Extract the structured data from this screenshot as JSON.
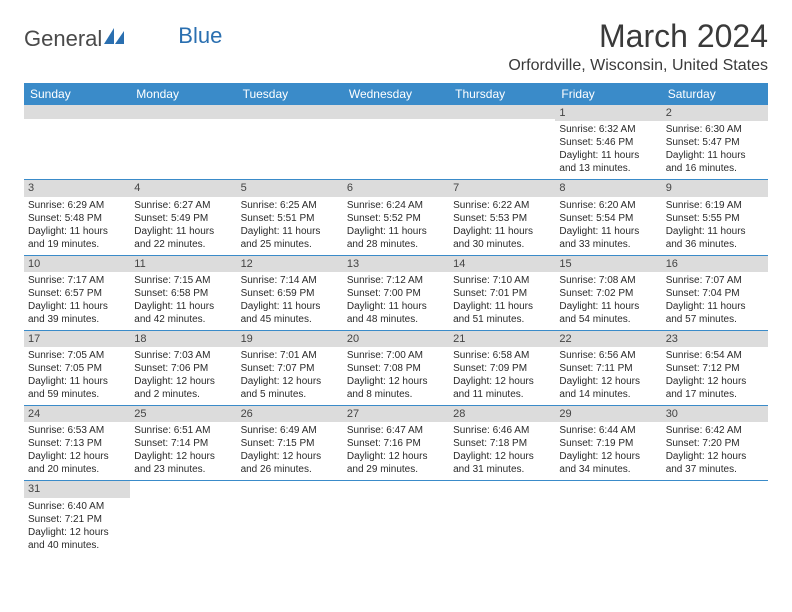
{
  "header": {
    "logo_general": "General",
    "logo_blue": "Blue",
    "month_title": "March 2024",
    "location": "Orfordville, Wisconsin, United States"
  },
  "colors": {
    "header_bg": "#3a8bc9",
    "header_text": "#ffffff",
    "daynum_bg": "#dcdcdc",
    "rule": "#3a8bc9",
    "logo_blue": "#2a6fb0"
  },
  "day_names": [
    "Sunday",
    "Monday",
    "Tuesday",
    "Wednesday",
    "Thursday",
    "Friday",
    "Saturday"
  ],
  "weeks": [
    [
      {
        "n": "",
        "sunrise": "",
        "sunset": "",
        "daylight": ""
      },
      {
        "n": "",
        "sunrise": "",
        "sunset": "",
        "daylight": ""
      },
      {
        "n": "",
        "sunrise": "",
        "sunset": "",
        "daylight": ""
      },
      {
        "n": "",
        "sunrise": "",
        "sunset": "",
        "daylight": ""
      },
      {
        "n": "",
        "sunrise": "",
        "sunset": "",
        "daylight": ""
      },
      {
        "n": "1",
        "sunrise": "Sunrise: 6:32 AM",
        "sunset": "Sunset: 5:46 PM",
        "daylight": "Daylight: 11 hours and 13 minutes."
      },
      {
        "n": "2",
        "sunrise": "Sunrise: 6:30 AM",
        "sunset": "Sunset: 5:47 PM",
        "daylight": "Daylight: 11 hours and 16 minutes."
      }
    ],
    [
      {
        "n": "3",
        "sunrise": "Sunrise: 6:29 AM",
        "sunset": "Sunset: 5:48 PM",
        "daylight": "Daylight: 11 hours and 19 minutes."
      },
      {
        "n": "4",
        "sunrise": "Sunrise: 6:27 AM",
        "sunset": "Sunset: 5:49 PM",
        "daylight": "Daylight: 11 hours and 22 minutes."
      },
      {
        "n": "5",
        "sunrise": "Sunrise: 6:25 AM",
        "sunset": "Sunset: 5:51 PM",
        "daylight": "Daylight: 11 hours and 25 minutes."
      },
      {
        "n": "6",
        "sunrise": "Sunrise: 6:24 AM",
        "sunset": "Sunset: 5:52 PM",
        "daylight": "Daylight: 11 hours and 28 minutes."
      },
      {
        "n": "7",
        "sunrise": "Sunrise: 6:22 AM",
        "sunset": "Sunset: 5:53 PM",
        "daylight": "Daylight: 11 hours and 30 minutes."
      },
      {
        "n": "8",
        "sunrise": "Sunrise: 6:20 AM",
        "sunset": "Sunset: 5:54 PM",
        "daylight": "Daylight: 11 hours and 33 minutes."
      },
      {
        "n": "9",
        "sunrise": "Sunrise: 6:19 AM",
        "sunset": "Sunset: 5:55 PM",
        "daylight": "Daylight: 11 hours and 36 minutes."
      }
    ],
    [
      {
        "n": "10",
        "sunrise": "Sunrise: 7:17 AM",
        "sunset": "Sunset: 6:57 PM",
        "daylight": "Daylight: 11 hours and 39 minutes."
      },
      {
        "n": "11",
        "sunrise": "Sunrise: 7:15 AM",
        "sunset": "Sunset: 6:58 PM",
        "daylight": "Daylight: 11 hours and 42 minutes."
      },
      {
        "n": "12",
        "sunrise": "Sunrise: 7:14 AM",
        "sunset": "Sunset: 6:59 PM",
        "daylight": "Daylight: 11 hours and 45 minutes."
      },
      {
        "n": "13",
        "sunrise": "Sunrise: 7:12 AM",
        "sunset": "Sunset: 7:00 PM",
        "daylight": "Daylight: 11 hours and 48 minutes."
      },
      {
        "n": "14",
        "sunrise": "Sunrise: 7:10 AM",
        "sunset": "Sunset: 7:01 PM",
        "daylight": "Daylight: 11 hours and 51 minutes."
      },
      {
        "n": "15",
        "sunrise": "Sunrise: 7:08 AM",
        "sunset": "Sunset: 7:02 PM",
        "daylight": "Daylight: 11 hours and 54 minutes."
      },
      {
        "n": "16",
        "sunrise": "Sunrise: 7:07 AM",
        "sunset": "Sunset: 7:04 PM",
        "daylight": "Daylight: 11 hours and 57 minutes."
      }
    ],
    [
      {
        "n": "17",
        "sunrise": "Sunrise: 7:05 AM",
        "sunset": "Sunset: 7:05 PM",
        "daylight": "Daylight: 11 hours and 59 minutes."
      },
      {
        "n": "18",
        "sunrise": "Sunrise: 7:03 AM",
        "sunset": "Sunset: 7:06 PM",
        "daylight": "Daylight: 12 hours and 2 minutes."
      },
      {
        "n": "19",
        "sunrise": "Sunrise: 7:01 AM",
        "sunset": "Sunset: 7:07 PM",
        "daylight": "Daylight: 12 hours and 5 minutes."
      },
      {
        "n": "20",
        "sunrise": "Sunrise: 7:00 AM",
        "sunset": "Sunset: 7:08 PM",
        "daylight": "Daylight: 12 hours and 8 minutes."
      },
      {
        "n": "21",
        "sunrise": "Sunrise: 6:58 AM",
        "sunset": "Sunset: 7:09 PM",
        "daylight": "Daylight: 12 hours and 11 minutes."
      },
      {
        "n": "22",
        "sunrise": "Sunrise: 6:56 AM",
        "sunset": "Sunset: 7:11 PM",
        "daylight": "Daylight: 12 hours and 14 minutes."
      },
      {
        "n": "23",
        "sunrise": "Sunrise: 6:54 AM",
        "sunset": "Sunset: 7:12 PM",
        "daylight": "Daylight: 12 hours and 17 minutes."
      }
    ],
    [
      {
        "n": "24",
        "sunrise": "Sunrise: 6:53 AM",
        "sunset": "Sunset: 7:13 PM",
        "daylight": "Daylight: 12 hours and 20 minutes."
      },
      {
        "n": "25",
        "sunrise": "Sunrise: 6:51 AM",
        "sunset": "Sunset: 7:14 PM",
        "daylight": "Daylight: 12 hours and 23 minutes."
      },
      {
        "n": "26",
        "sunrise": "Sunrise: 6:49 AM",
        "sunset": "Sunset: 7:15 PM",
        "daylight": "Daylight: 12 hours and 26 minutes."
      },
      {
        "n": "27",
        "sunrise": "Sunrise: 6:47 AM",
        "sunset": "Sunset: 7:16 PM",
        "daylight": "Daylight: 12 hours and 29 minutes."
      },
      {
        "n": "28",
        "sunrise": "Sunrise: 6:46 AM",
        "sunset": "Sunset: 7:18 PM",
        "daylight": "Daylight: 12 hours and 31 minutes."
      },
      {
        "n": "29",
        "sunrise": "Sunrise: 6:44 AM",
        "sunset": "Sunset: 7:19 PM",
        "daylight": "Daylight: 12 hours and 34 minutes."
      },
      {
        "n": "30",
        "sunrise": "Sunrise: 6:42 AM",
        "sunset": "Sunset: 7:20 PM",
        "daylight": "Daylight: 12 hours and 37 minutes."
      }
    ],
    [
      {
        "n": "31",
        "sunrise": "Sunrise: 6:40 AM",
        "sunset": "Sunset: 7:21 PM",
        "daylight": "Daylight: 12 hours and 40 minutes."
      },
      {
        "n": "",
        "sunrise": "",
        "sunset": "",
        "daylight": ""
      },
      {
        "n": "",
        "sunrise": "",
        "sunset": "",
        "daylight": ""
      },
      {
        "n": "",
        "sunrise": "",
        "sunset": "",
        "daylight": ""
      },
      {
        "n": "",
        "sunrise": "",
        "sunset": "",
        "daylight": ""
      },
      {
        "n": "",
        "sunrise": "",
        "sunset": "",
        "daylight": ""
      },
      {
        "n": "",
        "sunrise": "",
        "sunset": "",
        "daylight": ""
      }
    ]
  ]
}
